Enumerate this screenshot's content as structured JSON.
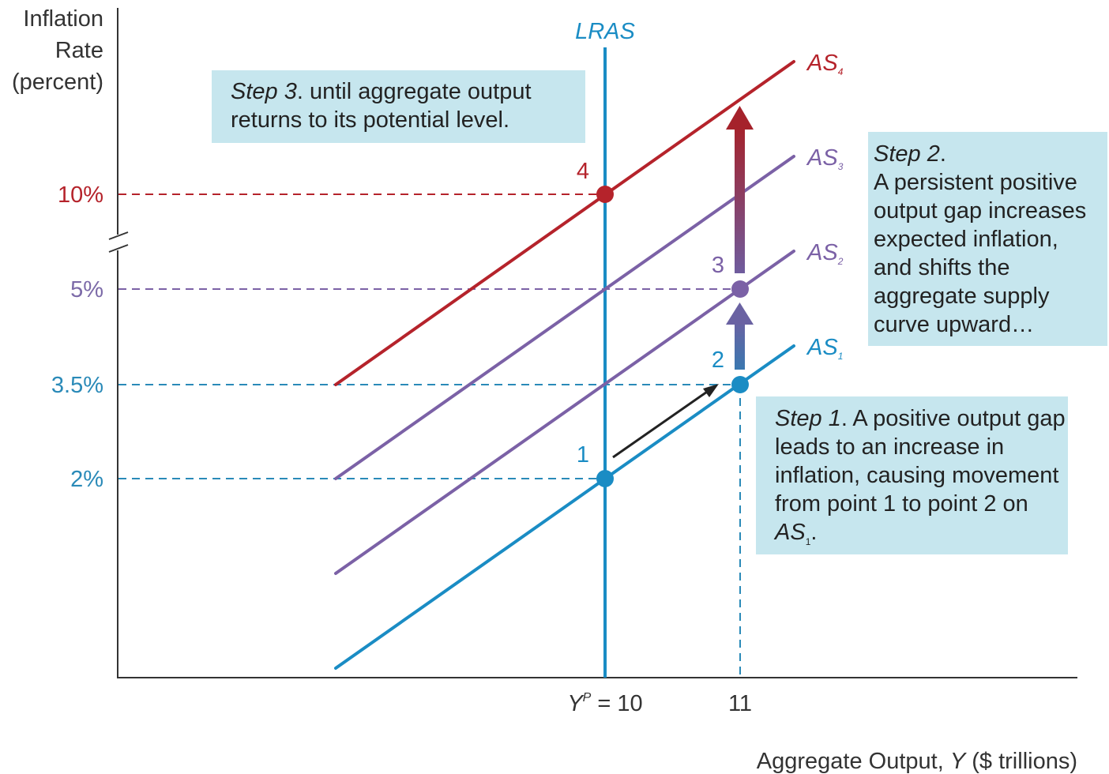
{
  "chart_data": {
    "type": "line",
    "xlabel_parts": [
      "Aggregate Output, ",
      "Y",
      " ($ trillions)"
    ],
    "ylabel_lines": [
      "Inflation",
      "Rate",
      "(percent)"
    ],
    "y_ticks": [
      {
        "label": "10%",
        "value": 10,
        "color": "#b5232b"
      },
      {
        "label": "5%",
        "value": 5,
        "color": "#7c6aa8"
      },
      {
        "label": "3.5%",
        "value": 3.5,
        "color": "#2a8ab8"
      },
      {
        "label": "2%",
        "value": 2,
        "color": "#2a8ab8"
      }
    ],
    "x_ticks": [
      {
        "label_main": "Y",
        "label_sup": "P",
        "label_rest": " = 10",
        "value": 10
      },
      {
        "label_main": "11",
        "label_sup": "",
        "label_rest": "",
        "value": 11
      }
    ],
    "lras": {
      "label": "LRAS",
      "x": 10,
      "color": "#1a8cc4"
    },
    "series": [
      {
        "label": "AS",
        "sub": "1",
        "color": "#1a8cc4",
        "x": [
          8.4,
          11.4
        ],
        "y": [
          -2.75,
          4.85
        ]
      },
      {
        "label": "AS",
        "sub": "2",
        "color": "#7b61a6",
        "x": [
          8.4,
          11.4
        ],
        "y": [
          -0.75,
          6.85
        ]
      },
      {
        "label": "AS",
        "sub": "3",
        "color": "#7b61a6",
        "x": [
          8.4,
          11.4
        ],
        "y": [
          2.0,
          8.5
        ]
      },
      {
        "label": "AS",
        "sub": "4",
        "color": "#b5232b",
        "x": [
          8.4,
          11.4
        ],
        "y": [
          3.5,
          13.5
        ]
      }
    ],
    "points": [
      {
        "label": "1",
        "x": 10,
        "y": 2,
        "color": "#1a8cc4"
      },
      {
        "label": "2",
        "x": 11,
        "y": 3.5,
        "color": "#1a8cc4"
      },
      {
        "label": "3",
        "x": 11,
        "y": 5,
        "color": "#7b61a6"
      },
      {
        "label": "4",
        "x": 10,
        "y": 10,
        "color": "#b5232b"
      }
    ],
    "axis_break": "y-axis between 5% and 10%"
  },
  "annotations": {
    "step3": {
      "italic": "Step 3",
      "text": ". until aggregate output returns to its potential level."
    },
    "step2": {
      "italic": "Step 2",
      "text_lines": [
        "A persistent  positive",
        "output gap increases",
        "expected inflation,",
        "and shifts the",
        "aggregate supply",
        "curve upward…"
      ]
    },
    "step1": {
      "italic": "Step 1",
      "text_a": ". A positive output gap leads to an increase in inflation, causing movement from point 1 to point 2 on ",
      "text_b_italic": "AS",
      "text_b_sub": "1",
      "text_c": "."
    }
  },
  "colors": {
    "blue": "#1a8cc4",
    "purple": "#7b61a6",
    "red": "#b5232b",
    "callout_bg": "#c6e6ee"
  }
}
